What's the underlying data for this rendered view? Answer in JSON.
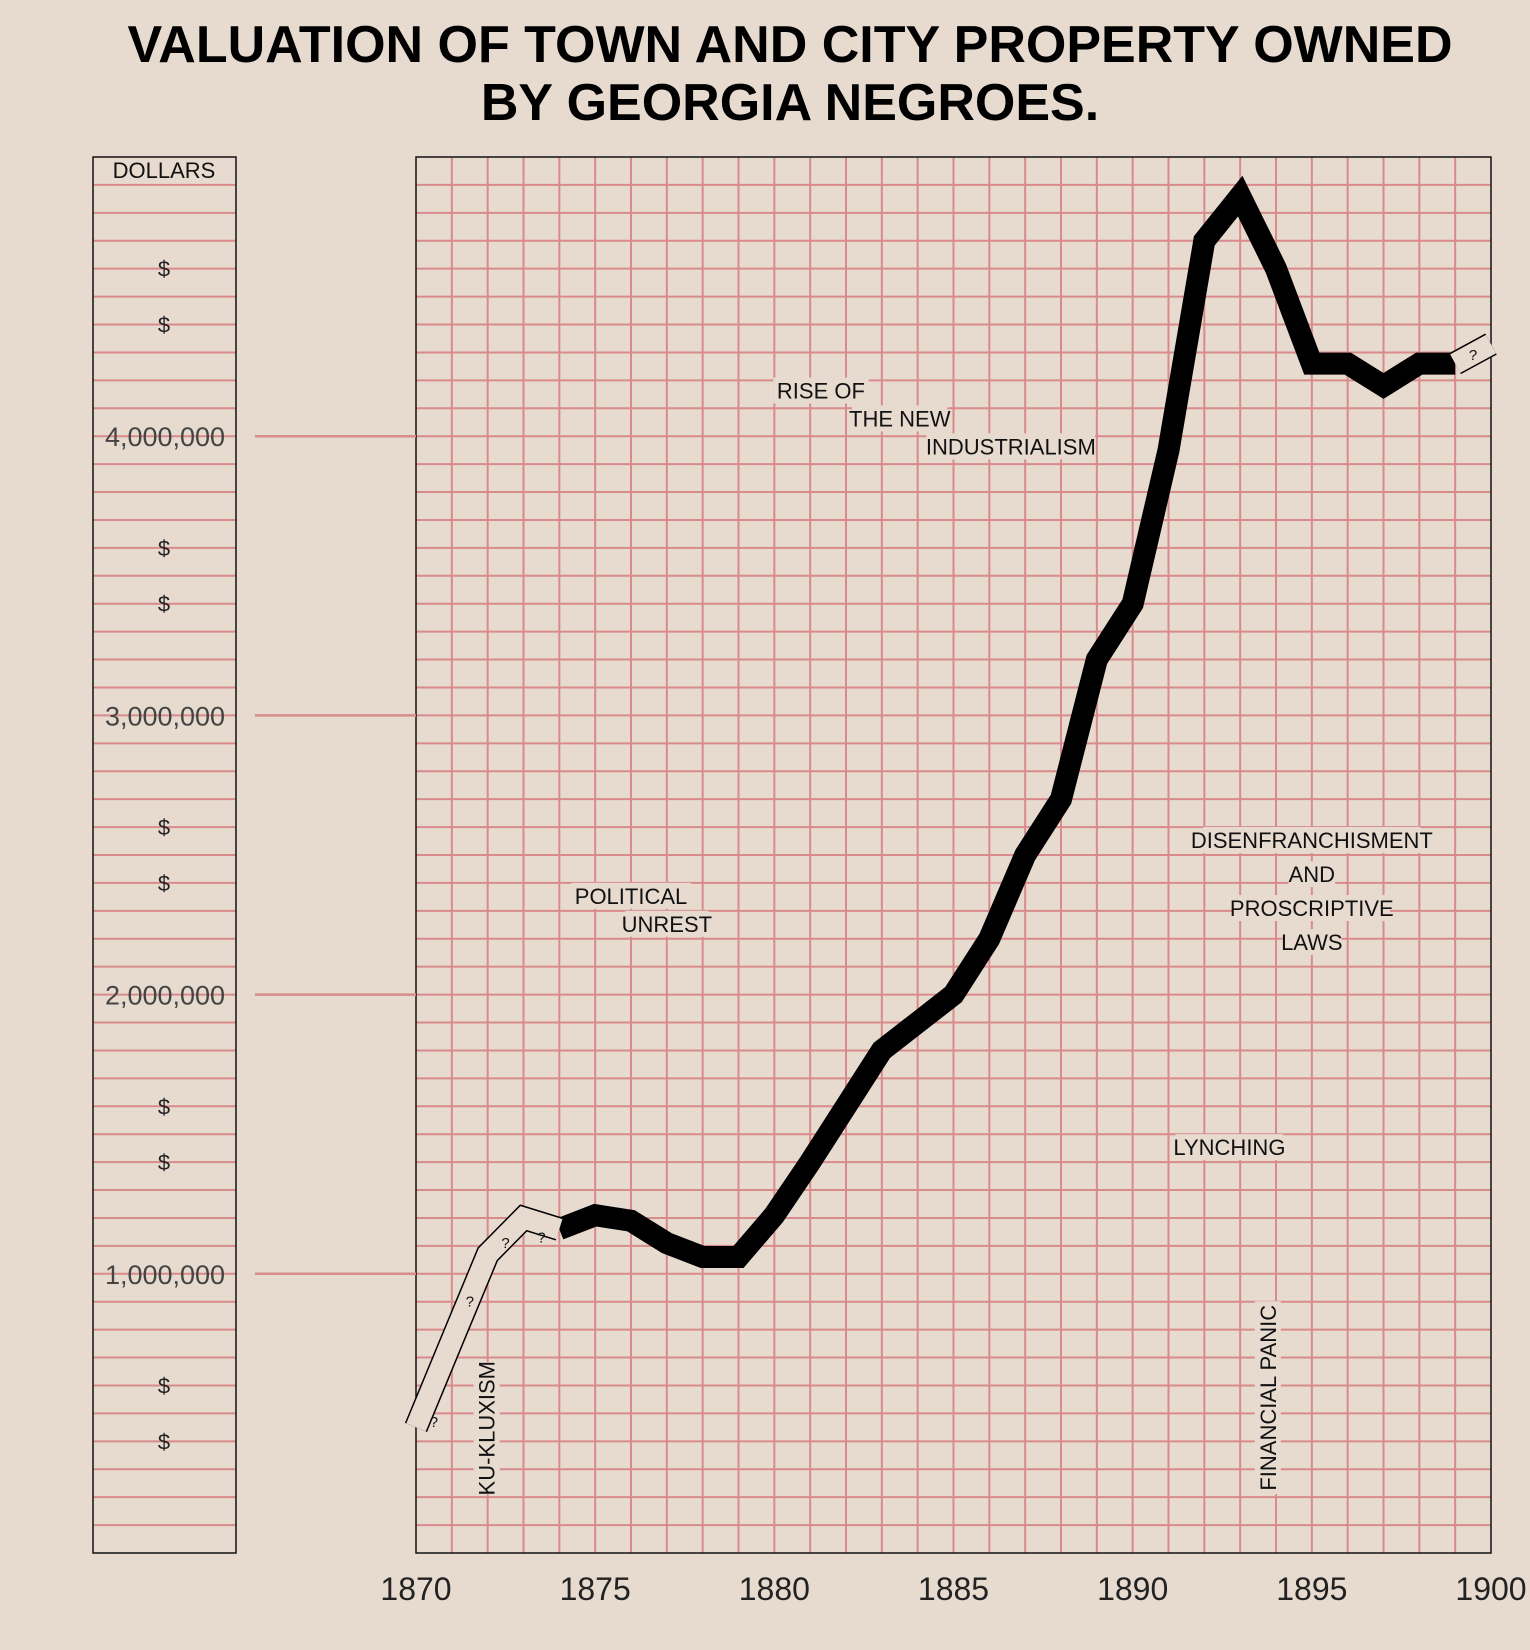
{
  "chart_data": {
    "type": "line",
    "title_lines": [
      "VALUATION OF TOWN AND CITY PROPERTY OWNED",
      "BY GEORGIA NEGROES."
    ],
    "y_unit_label": "DOLLARS",
    "ylim": [
      0,
      5000000
    ],
    "xlim": [
      1870,
      1900
    ],
    "x_ticks": [
      "1870",
      "1875",
      "1880",
      "1885",
      "1890",
      "1895",
      "1900"
    ],
    "y_ticks": [
      {
        "value": 1000000,
        "label": "1,000,000"
      },
      {
        "value": 2000000,
        "label": "2,000,000"
      },
      {
        "value": 3000000,
        "label": "3,000,000"
      },
      {
        "value": 4000000,
        "label": "4,000,000"
      }
    ],
    "dollar_marks": [
      {
        "value": 4600000,
        "label": "$"
      },
      {
        "value": 4400000,
        "label": "$"
      },
      {
        "value": 3600000,
        "label": "$"
      },
      {
        "value": 3400000,
        "label": "$"
      },
      {
        "value": 2600000,
        "label": "$"
      },
      {
        "value": 2400000,
        "label": "$"
      },
      {
        "value": 1600000,
        "label": "$"
      },
      {
        "value": 1400000,
        "label": "$"
      },
      {
        "value": 600000,
        "label": "$"
      },
      {
        "value": 400000,
        "label": "$"
      }
    ],
    "grid": true,
    "series": [
      {
        "style": "solid",
        "x": [
          1874,
          1875,
          1876,
          1877,
          1878,
          1879,
          1880,
          1881,
          1882,
          1883,
          1884,
          1885,
          1886,
          1887,
          1888,
          1889,
          1890,
          1891,
          1892,
          1893,
          1894,
          1895,
          1896,
          1897,
          1898,
          1899
        ],
        "y": [
          1160000,
          1210000,
          1190000,
          1110000,
          1060000,
          1060000,
          1210000,
          1400000,
          1600000,
          1800000,
          1900000,
          2000000,
          2200000,
          2500000,
          2700000,
          3200000,
          3400000,
          3950000,
          4700000,
          4860000,
          4600000,
          4260000,
          4260000,
          4180000,
          4260000,
          4260000
        ]
      },
      {
        "style": "uncertain",
        "x": [
          1870,
          1871,
          1872,
          1873,
          1874
        ],
        "y": [
          450000,
          760000,
          1070000,
          1200000,
          1160000
        ]
      },
      {
        "style": "uncertain",
        "x": [
          1899,
          1900
        ],
        "y": [
          4260000,
          4330000
        ]
      }
    ],
    "uncertainty_marks": [
      {
        "x": 1870.5,
        "y": 470000,
        "label": "?"
      },
      {
        "x": 1871.5,
        "y": 900000,
        "label": "?"
      },
      {
        "x": 1872.5,
        "y": 1110000,
        "label": "?"
      },
      {
        "x": 1873.5,
        "y": 1130000,
        "label": "?"
      },
      {
        "x": 1899.5,
        "y": 4290000,
        "label": "?"
      }
    ],
    "annotations": [
      {
        "lines": [
          "RISE OF"
        ],
        "x": 1881.3,
        "y": 4160000,
        "anchor": "middle"
      },
      {
        "lines": [
          "THE NEW"
        ],
        "x": 1883.5,
        "y": 4060000,
        "anchor": "middle"
      },
      {
        "lines": [
          "INDUSTRIALISM"
        ],
        "x": 1886.6,
        "y": 3960000,
        "anchor": "middle"
      },
      {
        "lines": [
          "POLITICAL"
        ],
        "x": 1876.0,
        "y": 2350000,
        "anchor": "middle"
      },
      {
        "lines": [
          "UNREST"
        ],
        "x": 1877.0,
        "y": 2250000,
        "anchor": "middle"
      },
      {
        "lines": [
          "DISENFRANCHISMENT",
          "AND",
          "PROSCRIPTIVE",
          "LAWS"
        ],
        "x": 1895.0,
        "y": 2550000,
        "anchor": "middle"
      },
      {
        "lines": [
          "LYNCHING"
        ],
        "x": 1892.7,
        "y": 1450000,
        "anchor": "middle"
      },
      {
        "lines": [
          "KU-KLUXISM"
        ],
        "x": 1872.0,
        "y": 300000,
        "anchor": "rotated"
      },
      {
        "lines": [
          "FINANCIAL PANIC"
        ],
        "x": 1893.8,
        "y": 300000,
        "anchor": "rotated"
      }
    ]
  }
}
